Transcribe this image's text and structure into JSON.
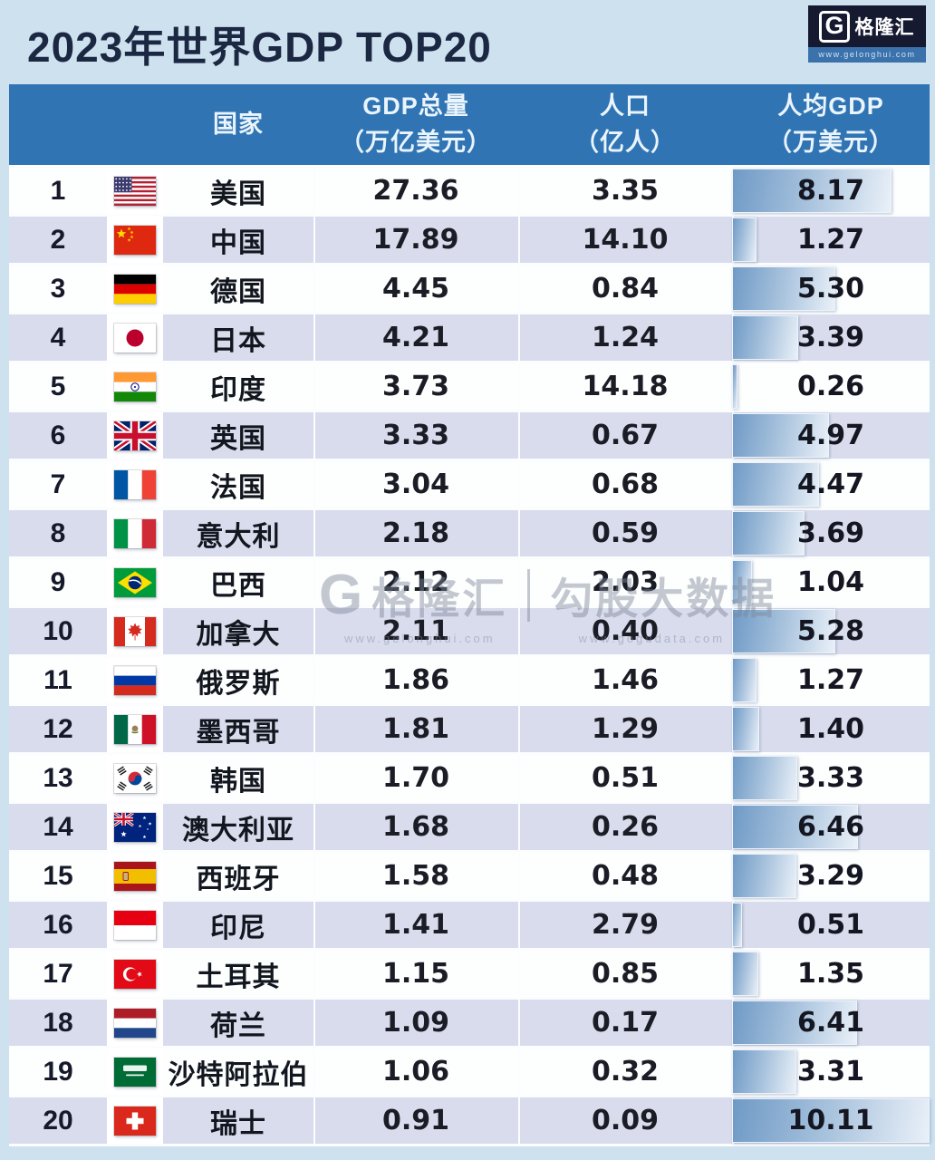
{
  "title": "2023年世界GDP TOP20",
  "logo": {
    "g_mark": "G",
    "name": "格隆汇",
    "url": "www.gelonghui.com"
  },
  "watermark": {
    "g_mark": "G",
    "brand": "格隆汇",
    "right": "勾股大数据",
    "left_url": "www.gelonghui.com",
    "right_url": "www.gogudata.com"
  },
  "table": {
    "columns": {
      "country": "国家",
      "gdp_line1": "GDP总量",
      "gdp_line2": "（万亿美元）",
      "pop_line1": "人口",
      "pop_line2": "（亿人）",
      "percap_line1": "人均GDP",
      "percap_line2": "（万美元）"
    },
    "bar_max": 10.11,
    "rows": [
      {
        "rank": "1",
        "flag": "usa",
        "country": "美国",
        "gdp": "27.36",
        "population": "3.35",
        "per_capita": "8.17"
      },
      {
        "rank": "2",
        "flag": "china",
        "country": "中国",
        "gdp": "17.89",
        "population": "14.10",
        "per_capita": "1.27"
      },
      {
        "rank": "3",
        "flag": "germany",
        "country": "德国",
        "gdp": "4.45",
        "population": "0.84",
        "per_capita": "5.30"
      },
      {
        "rank": "4",
        "flag": "japan",
        "country": "日本",
        "gdp": "4.21",
        "population": "1.24",
        "per_capita": "3.39"
      },
      {
        "rank": "5",
        "flag": "india",
        "country": "印度",
        "gdp": "3.73",
        "population": "14.18",
        "per_capita": "0.26"
      },
      {
        "rank": "6",
        "flag": "uk",
        "country": "英国",
        "gdp": "3.33",
        "population": "0.67",
        "per_capita": "4.97"
      },
      {
        "rank": "7",
        "flag": "france",
        "country": "法国",
        "gdp": "3.04",
        "population": "0.68",
        "per_capita": "4.47"
      },
      {
        "rank": "8",
        "flag": "italy",
        "country": "意大利",
        "gdp": "2.18",
        "population": "0.59",
        "per_capita": "3.69"
      },
      {
        "rank": "9",
        "flag": "brazil",
        "country": "巴西",
        "gdp": "2.12",
        "population": "2.03",
        "per_capita": "1.04"
      },
      {
        "rank": "10",
        "flag": "canada",
        "country": "加拿大",
        "gdp": "2.11",
        "population": "0.40",
        "per_capita": "5.28"
      },
      {
        "rank": "11",
        "flag": "russia",
        "country": "俄罗斯",
        "gdp": "1.86",
        "population": "1.46",
        "per_capita": "1.27"
      },
      {
        "rank": "12",
        "flag": "mexico",
        "country": "墨西哥",
        "gdp": "1.81",
        "population": "1.29",
        "per_capita": "1.40"
      },
      {
        "rank": "13",
        "flag": "south-korea",
        "country": "韩国",
        "gdp": "1.70",
        "population": "0.51",
        "per_capita": "3.33"
      },
      {
        "rank": "14",
        "flag": "australia",
        "country": "澳大利亚",
        "gdp": "1.68",
        "population": "0.26",
        "per_capita": "6.46"
      },
      {
        "rank": "15",
        "flag": "spain",
        "country": "西班牙",
        "gdp": "1.58",
        "population": "0.48",
        "per_capita": "3.29"
      },
      {
        "rank": "16",
        "flag": "indonesia",
        "country": "印尼",
        "gdp": "1.41",
        "population": "2.79",
        "per_capita": "0.51"
      },
      {
        "rank": "17",
        "flag": "turkey",
        "country": "土耳其",
        "gdp": "1.15",
        "population": "0.85",
        "per_capita": "1.35"
      },
      {
        "rank": "18",
        "flag": "netherlands",
        "country": "荷兰",
        "gdp": "1.09",
        "population": "0.17",
        "per_capita": "6.41"
      },
      {
        "rank": "19",
        "flag": "saudi-arabia",
        "country": "沙特阿拉伯",
        "gdp": "1.06",
        "population": "0.32",
        "per_capita": "3.31"
      },
      {
        "rank": "20",
        "flag": "switzerland",
        "country": "瑞士",
        "gdp": "0.91",
        "population": "0.09",
        "per_capita": "10.11"
      }
    ]
  },
  "colors": {
    "page_bg": "#cde1ef",
    "header_bg": "#3074b3",
    "row_alt_bg": "#d9dcec",
    "row_bg": "#fdfefe",
    "bar_gradient_from": "#6f9ac6",
    "bar_gradient_to": "#e9f0f8",
    "title_text": "#1c2742",
    "logo_bg": "#151a31",
    "logo_strip_bg": "#3b72ab"
  },
  "chart_data": {
    "type": "table",
    "title": "2023年世界GDP TOP20",
    "columns": [
      "国家",
      "GDP总量（万亿美元）",
      "人口（亿人）",
      "人均GDP（万美元）"
    ],
    "bar_column": "人均GDP（万美元）",
    "bar_max": 10.11,
    "rows": [
      [
        "美国",
        27.36,
        3.35,
        8.17
      ],
      [
        "中国",
        17.89,
        14.1,
        1.27
      ],
      [
        "德国",
        4.45,
        0.84,
        5.3
      ],
      [
        "日本",
        4.21,
        1.24,
        3.39
      ],
      [
        "印度",
        3.73,
        14.18,
        0.26
      ],
      [
        "英国",
        3.33,
        0.67,
        4.97
      ],
      [
        "法国",
        3.04,
        0.68,
        4.47
      ],
      [
        "意大利",
        2.18,
        0.59,
        3.69
      ],
      [
        "巴西",
        2.12,
        2.03,
        1.04
      ],
      [
        "加拿大",
        2.11,
        0.4,
        5.28
      ],
      [
        "俄罗斯",
        1.86,
        1.46,
        1.27
      ],
      [
        "墨西哥",
        1.81,
        1.29,
        1.4
      ],
      [
        "韩国",
        1.7,
        0.51,
        3.33
      ],
      [
        "澳大利亚",
        1.68,
        0.26,
        6.46
      ],
      [
        "西班牙",
        1.58,
        0.48,
        3.29
      ],
      [
        "印尼",
        1.41,
        2.79,
        0.51
      ],
      [
        "土耳其",
        1.15,
        0.85,
        1.35
      ],
      [
        "荷兰",
        1.09,
        0.17,
        6.41
      ],
      [
        "沙特阿拉伯",
        1.06,
        0.32,
        3.31
      ],
      [
        "瑞士",
        0.91,
        0.09,
        10.11
      ]
    ]
  }
}
